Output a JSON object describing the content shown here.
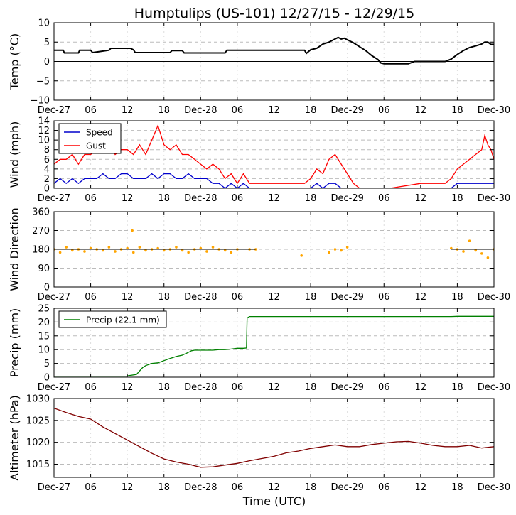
{
  "title": "Humptulips (US-101) 12/27/15 - 12/29/15",
  "xlabel": "Time (UTC)",
  "x_ticks": [
    "Dec-27",
    "06",
    "12",
    "18",
    "Dec-28",
    "06",
    "12",
    "18",
    "Dec-29",
    "06",
    "12",
    "18",
    "Dec-30"
  ],
  "x_range_hours": [
    0,
    72
  ],
  "chart_data": [
    {
      "type": "line",
      "ylabel": "Temp (°C)",
      "ylim": [
        -10,
        10
      ],
      "yticks": [
        "10",
        "5",
        "0",
        "−5",
        "−10"
      ],
      "grid": true,
      "zero_line": true,
      "series": [
        {
          "color": "#000000",
          "x": [
            0,
            1.5,
            1.7,
            4,
            4.2,
            6,
            6.3,
            9,
            9.3,
            12,
            12.5,
            13,
            13.3,
            19,
            19.3,
            21,
            21.3,
            28,
            28.3,
            41,
            41.3,
            42,
            43,
            44,
            45,
            46,
            46.5,
            47,
            47.5,
            48,
            49,
            50,
            51,
            52,
            53,
            53.5,
            54,
            55,
            58,
            59,
            62,
            64,
            65,
            66,
            67,
            68,
            69,
            70,
            70.5,
            71,
            71.5,
            72
          ],
          "values": [
            2.9,
            2.9,
            2.2,
            2.2,
            2.9,
            2.9,
            2.3,
            2.9,
            3.4,
            3.4,
            3.4,
            3.0,
            2.3,
            2.3,
            2.8,
            2.8,
            2.2,
            2.2,
            2.9,
            2.9,
            2.1,
            3.0,
            3.4,
            4.5,
            5.0,
            5.8,
            6.2,
            5.8,
            6.0,
            5.6,
            4.8,
            3.8,
            2.8,
            1.5,
            0.5,
            -0.4,
            -0.6,
            -0.6,
            -0.6,
            0.0,
            0.0,
            0.0,
            0.6,
            1.8,
            2.8,
            3.6,
            4.0,
            4.5,
            5.0,
            5.0,
            4.4,
            4.4
          ]
        }
      ]
    },
    {
      "type": "line",
      "ylabel": "Wind (mph)",
      "ylim": [
        0,
        14
      ],
      "yticks": [
        "14",
        "12",
        "10",
        "8",
        "6",
        "4",
        "2",
        "0"
      ],
      "grid": true,
      "legend": "upper-left",
      "series": [
        {
          "name": "Speed",
          "color": "#0000cc",
          "x": [
            0,
            1,
            2,
            3,
            4,
            5,
            6,
            7,
            8,
            9,
            10,
            11,
            12,
            13,
            14,
            15,
            16,
            17,
            18,
            19,
            20,
            21,
            22,
            23,
            24,
            25,
            26,
            27,
            28,
            29,
            30,
            31,
            32,
            33,
            34,
            35,
            36,
            37,
            38,
            39,
            40,
            41,
            42,
            43,
            44,
            45,
            46,
            47,
            48,
            50,
            55,
            60,
            65,
            66,
            67,
            68,
            69,
            70,
            71,
            72
          ],
          "values": [
            1,
            2,
            1,
            2,
            1,
            2,
            2,
            2,
            3,
            2,
            2,
            3,
            3,
            2,
            2,
            2,
            3,
            2,
            3,
            3,
            2,
            2,
            3,
            2,
            2,
            2,
            1,
            1,
            0,
            1,
            0,
            1,
            0,
            0,
            0,
            0,
            0,
            0,
            0,
            0,
            0,
            0,
            0,
            1,
            0,
            1,
            1,
            0,
            0,
            0,
            0,
            0,
            0,
            1,
            1,
            1,
            1,
            1,
            1,
            1
          ]
        },
        {
          "name": "Gust",
          "color": "#ff0000",
          "x": [
            0,
            1,
            2,
            3,
            4,
            5,
            6,
            7,
            8,
            9,
            10,
            11,
            12,
            13,
            14,
            15,
            16,
            17,
            18,
            19,
            20,
            21,
            22,
            23,
            24,
            25,
            26,
            27,
            28,
            29,
            30,
            31,
            32,
            33,
            34,
            35,
            36,
            37,
            38,
            39,
            40,
            41,
            42,
            43,
            44,
            45,
            46,
            47,
            48,
            49,
            50,
            55,
            60,
            62,
            63,
            64,
            65,
            66,
            67,
            68,
            69,
            70,
            70.5,
            71,
            71.5,
            72
          ],
          "values": [
            5,
            6,
            6,
            7,
            5,
            7,
            7,
            8,
            8,
            9,
            7,
            8,
            8,
            7,
            9,
            7,
            10,
            13,
            9,
            8,
            9,
            7,
            7,
            6,
            5,
            4,
            5,
            4,
            2,
            3,
            1,
            3,
            1,
            1,
            1,
            1,
            1,
            1,
            1,
            1,
            1,
            1,
            2,
            4,
            3,
            6,
            7,
            5,
            3,
            1,
            0,
            0,
            1,
            1,
            1,
            1,
            2,
            4,
            5,
            6,
            7,
            8,
            11,
            9,
            8,
            6
          ]
        }
      ]
    },
    {
      "type": "scatter",
      "ylabel": "Wind Direction",
      "ylim": [
        0,
        360
      ],
      "yticks": [
        "360",
        "270",
        "180",
        "90",
        "0"
      ],
      "grid": true,
      "series": [
        {
          "color": "#ffa500",
          "x": [
            0,
            1,
            2,
            3,
            4,
            5,
            6,
            7,
            8,
            9,
            10,
            11,
            12,
            12.8,
            13,
            14,
            15,
            16,
            17,
            18,
            19,
            20,
            21,
            22,
            23,
            24,
            25,
            26,
            27,
            28,
            29,
            30,
            32,
            33,
            40.5,
            45,
            46,
            47,
            48,
            65,
            66,
            67,
            68,
            69,
            70,
            71,
            72
          ],
          "values": [
            180,
            165,
            190,
            175,
            180,
            170,
            185,
            180,
            175,
            190,
            170,
            180,
            185,
            270,
            165,
            190,
            175,
            180,
            185,
            175,
            180,
            190,
            175,
            165,
            180,
            185,
            170,
            190,
            180,
            175,
            165,
            180,
            180,
            180,
            150,
            165,
            180,
            175,
            190,
            185,
            180,
            170,
            220,
            175,
            160,
            140,
            180
          ]
        }
      ]
    },
    {
      "type": "line",
      "ylabel": "Precip (mm)",
      "ylim": [
        0,
        25
      ],
      "yticks": [
        "25",
        "20",
        "15",
        "10",
        "5",
        "0"
      ],
      "grid": true,
      "legend": "upper-left",
      "series": [
        {
          "name": "Precip (22.1 mm)",
          "color": "#008000",
          "x": [
            0,
            11.9,
            12,
            13.5,
            14.5,
            15,
            16,
            17,
            18,
            19,
            20,
            21,
            22,
            22.5,
            23,
            26,
            27,
            28,
            29,
            30,
            31,
            31.5,
            31.6,
            32,
            36,
            40,
            50,
            60,
            65,
            66,
            72
          ],
          "values": [
            0,
            0,
            0.5,
            1.0,
            3.5,
            4.2,
            5.0,
            5.2,
            6.0,
            6.8,
            7.5,
            8.0,
            9.0,
            9.6,
            9.8,
            9.8,
            10.0,
            10.0,
            10.2,
            10.5,
            10.5,
            10.6,
            21.5,
            22.0,
            22.0,
            22.0,
            22.0,
            22.0,
            22.0,
            22.1,
            22.1
          ]
        }
      ]
    },
    {
      "type": "line",
      "ylabel": "Altimeter (hPa)",
      "ylim": [
        1012,
        1030
      ],
      "yticks": [
        "1030",
        "1025",
        "1020",
        "1015"
      ],
      "grid": true,
      "series": [
        {
          "color": "#800000",
          "x": [
            0,
            2,
            4,
            6,
            8,
            10,
            12,
            14,
            16,
            18,
            20,
            22,
            24,
            26,
            28,
            30,
            32,
            34,
            36,
            38,
            40,
            42,
            44,
            46,
            48,
            50,
            52,
            54,
            56,
            58,
            60,
            62,
            64,
            66,
            68,
            70,
            72
          ],
          "values": [
            1027.8,
            1026.8,
            1025.9,
            1025.3,
            1023.5,
            1022.0,
            1020.5,
            1019.0,
            1017.5,
            1016.2,
            1015.5,
            1015.0,
            1014.3,
            1014.4,
            1014.8,
            1015.2,
            1015.8,
            1016.3,
            1016.8,
            1017.6,
            1018.0,
            1018.6,
            1019.0,
            1019.4,
            1019.0,
            1019.0,
            1019.5,
            1019.8,
            1020.1,
            1020.2,
            1019.8,
            1019.3,
            1019.0,
            1019.0,
            1019.3,
            1018.7,
            1019.0
          ]
        }
      ]
    }
  ]
}
